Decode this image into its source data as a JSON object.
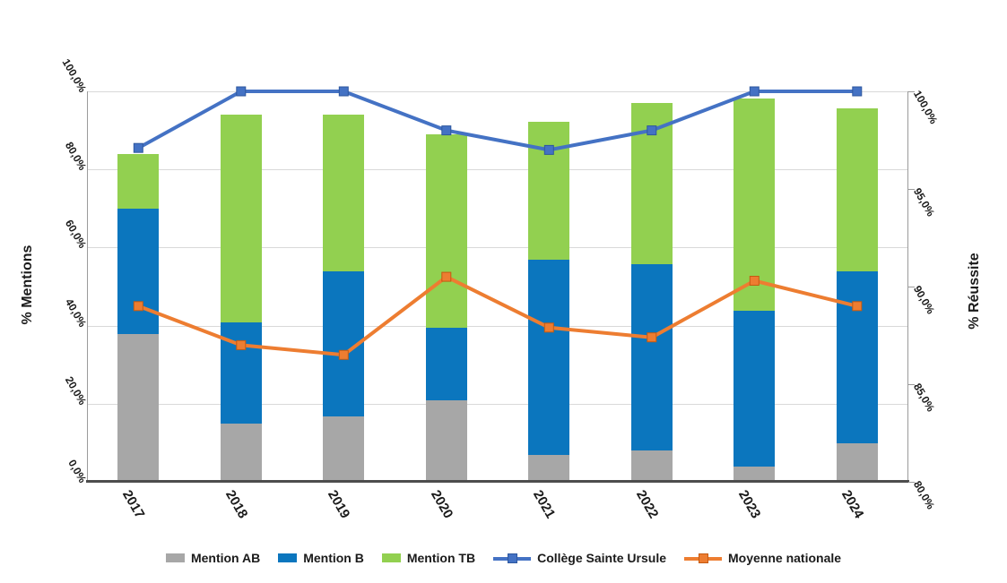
{
  "chart_data": {
    "type": "combo_stacked_bar_line",
    "categories": [
      "2017",
      "2018",
      "2019",
      "2020",
      "2021",
      "2022",
      "2023",
      "2024"
    ],
    "bar_series": [
      {
        "name": "Mention AB",
        "color": "#a7a7a7",
        "values": [
          37.8,
          14.9,
          16.8,
          20.8,
          6.8,
          8.1,
          4.0,
          9.9
        ]
      },
      {
        "name": "Mention B",
        "color": "#0b76be",
        "values": [
          32.2,
          26.0,
          37.1,
          18.7,
          50.0,
          47.7,
          39.8,
          44.0
        ]
      },
      {
        "name": "Mention TB",
        "color": "#92d050",
        "values": [
          14.0,
          53.2,
          40.2,
          49.6,
          35.3,
          41.3,
          54.3,
          41.8
        ]
      }
    ],
    "line_series": [
      {
        "name": "Collège Sainte Ursule",
        "color": "#4472c4",
        "marker_edge": "#2e579e",
        "axis": "right",
        "values": [
          97.1,
          100.0,
          100.0,
          98.0,
          97.0,
          98.0,
          100.0,
          100.0
        ]
      },
      {
        "name": "Moyenne nationale",
        "color": "#ed7d31",
        "marker_edge": "#c55a11",
        "axis": "right",
        "values": [
          89.0,
          87.0,
          86.5,
          90.5,
          87.9,
          87.4,
          90.3,
          89.0
        ]
      }
    ],
    "left_axis": {
      "title": "% Mentions",
      "min": 0,
      "max": 100,
      "step": 20,
      "tick_labels": [
        "0,0%",
        "20,0%",
        "40,0%",
        "60,0%",
        "80,0%",
        "100,0%"
      ]
    },
    "right_axis": {
      "title": "% Réussite",
      "min": 80,
      "max": 100,
      "step": 5,
      "tick_labels": [
        "80,0%",
        "85,0%",
        "90,0%",
        "95,0%",
        "100,0%"
      ]
    },
    "grid": true,
    "legend_position": "bottom",
    "colors": {
      "gridline": "#d9d9d9",
      "axis_side": "#9b9b9b",
      "axis_bottom": "#4d4d4d",
      "text": "#1a1a1a",
      "background": "#ffffff"
    }
  }
}
